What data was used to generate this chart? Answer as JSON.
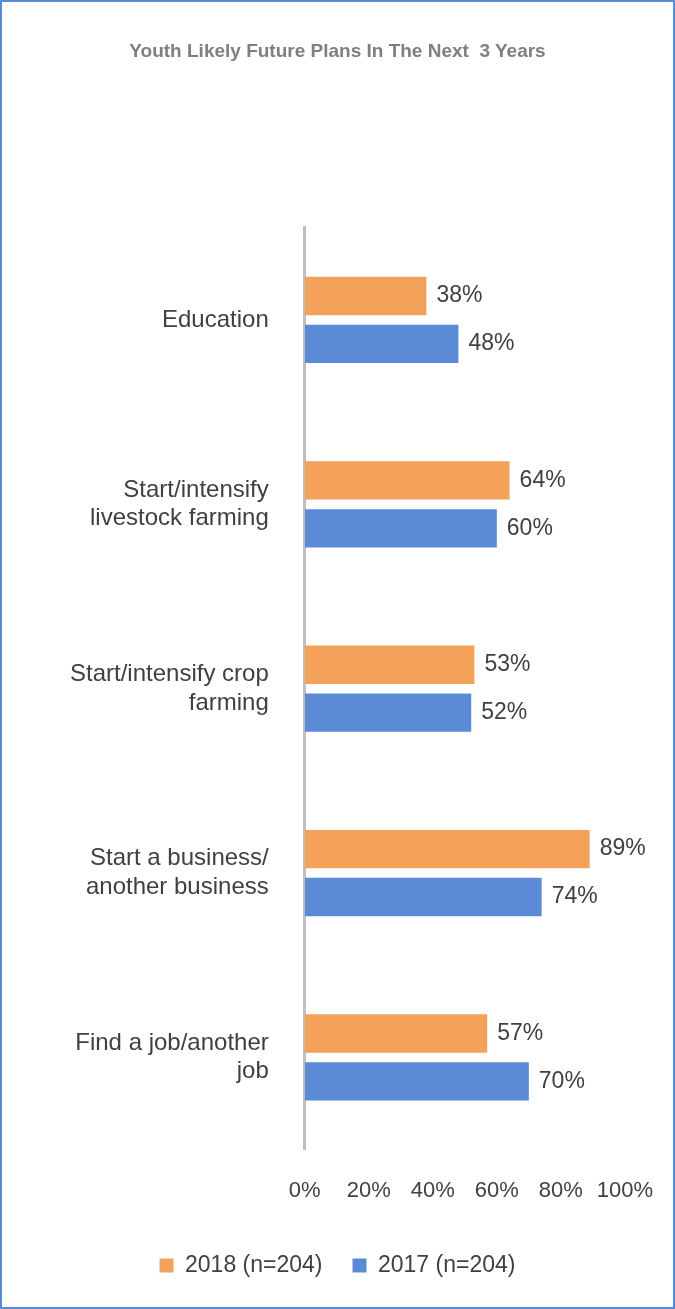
{
  "chart_data": {
    "type": "bar",
    "orientation": "horizontal",
    "title": "Youth Likely Future Plans In The Next  3 Years",
    "categories": [
      "Education",
      "Start/intensify livestock farming",
      "Start/intensify crop farming",
      "Start a business/ another business",
      "Find a job/another job"
    ],
    "series": [
      {
        "name": "2018 (n=204)",
        "color": "#f4a259",
        "values": [
          38,
          64,
          53,
          89,
          57
        ],
        "value_labels": [
          "38%",
          "64%",
          "53%",
          "89%",
          "57%"
        ]
      },
      {
        "name": "2017 (n=204)",
        "color": "#5b8bd6",
        "values": [
          48,
          60,
          52,
          74,
          70
        ],
        "value_labels": [
          "48%",
          "60%",
          "52%",
          "74%",
          "70%"
        ]
      }
    ],
    "xlim": [
      0,
      100
    ],
    "xticks": [
      {
        "value": 0,
        "label": "0%"
      },
      {
        "value": 20,
        "label": "20%"
      },
      {
        "value": 40,
        "label": "40%"
      },
      {
        "value": 60,
        "label": "60%"
      },
      {
        "value": 80,
        "label": "80%"
      },
      {
        "value": 100,
        "label": "100%"
      }
    ],
    "grid": false,
    "legend": "bottom"
  }
}
